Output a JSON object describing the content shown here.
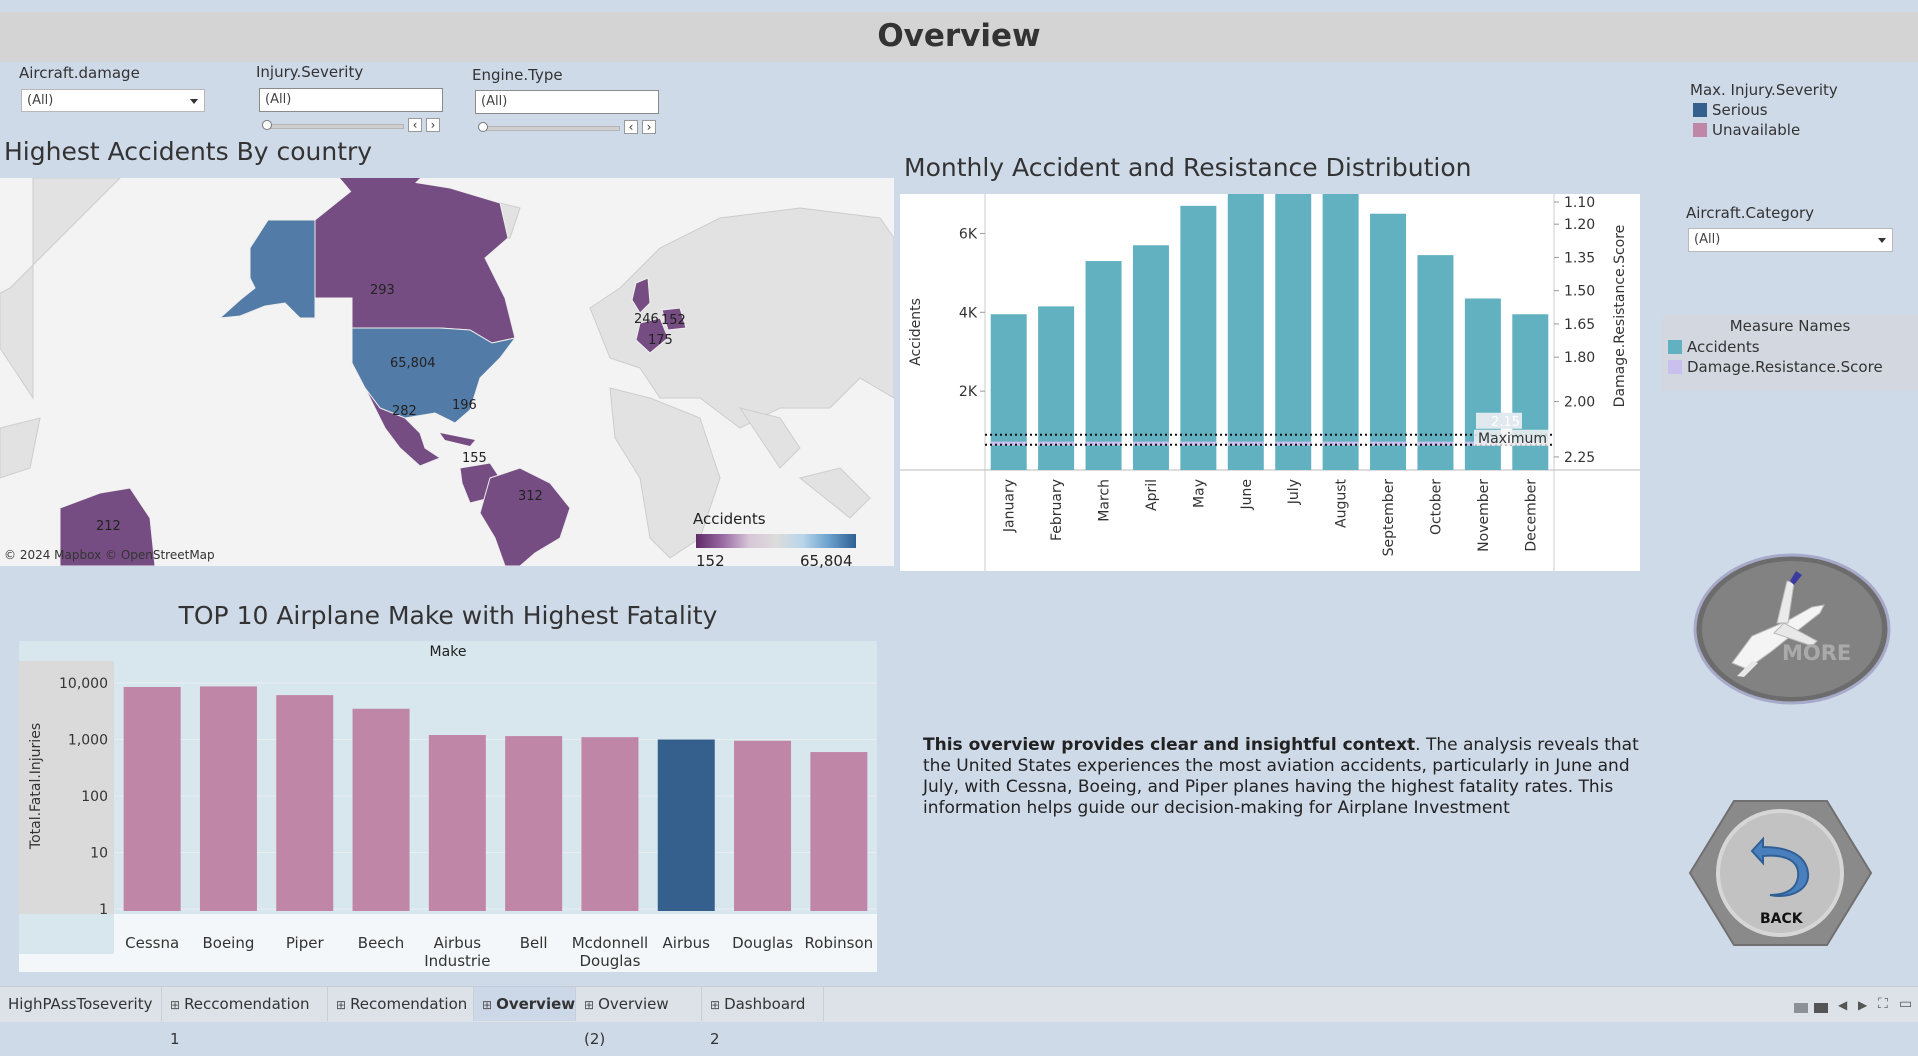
{
  "page": {
    "title": "Overview"
  },
  "filters": {
    "aircraft_damage": {
      "label": "Aircraft.damage",
      "value": "(All)"
    },
    "injury_severity": {
      "label": "Injury.Severity",
      "value": "(All)"
    },
    "engine_type": {
      "label": "Engine.Type",
      "value": "(All)"
    },
    "aircraft_category": {
      "label": "Aircraft.Category",
      "value": "(All)"
    }
  },
  "legends": {
    "max_injury": {
      "title": "Max. Injury.Severity",
      "items": [
        {
          "label": "Serious",
          "color": "#35608d"
        },
        {
          "label": "Unavailable",
          "color": "#c086a8"
        }
      ]
    },
    "measure_names": {
      "title": "Measure Names",
      "items": [
        {
          "label": "Accidents",
          "color": "#62b1c0"
        },
        {
          "label": "Damage.Resistance.Score",
          "color": "#c9c0f0"
        }
      ]
    }
  },
  "map": {
    "title": "Highest Accidents By country",
    "attribution": "© 2024 Mapbox © OpenStreetMap",
    "legend_title": "Accidents",
    "legend_min": "152",
    "legend_max": "65,804",
    "labels": [
      {
        "id": "canada",
        "text": "293",
        "value": 293
      },
      {
        "id": "usa",
        "text": "65,804",
        "value": 65804
      },
      {
        "id": "mexico",
        "text": "282",
        "value": 282
      },
      {
        "id": "bahamas",
        "text": "196",
        "value": 196
      },
      {
        "id": "colombia",
        "text": "155",
        "value": 155
      },
      {
        "id": "brazil",
        "text": "312",
        "value": 312
      },
      {
        "id": "australia",
        "text": "212",
        "value": 212
      },
      {
        "id": "uk",
        "text": "246",
        "value": 246
      },
      {
        "id": "germany",
        "text": "152",
        "value": 152
      },
      {
        "id": "france",
        "text": "175",
        "value": 175
      }
    ]
  },
  "monthly": {
    "title": "Monthly Accident and Resistance Distribution",
    "max_label": "Maximum",
    "max_value_label": "2.15"
  },
  "top10": {
    "title": "TOP 10 Airplane Make with Highest Fatality",
    "header": "Make"
  },
  "chart_data": [
    {
      "type": "bar",
      "title": "Monthly Accident and Resistance Distribution",
      "categories": [
        "January",
        "February",
        "March",
        "April",
        "May",
        "June",
        "July",
        "August",
        "September",
        "October",
        "November",
        "December"
      ],
      "series": [
        {
          "name": "Accidents",
          "axis": "left",
          "values": [
            3950,
            4150,
            5300,
            5700,
            6700,
            7000,
            7000,
            7000,
            6500,
            5450,
            4350,
            3950
          ]
        },
        {
          "name": "Damage.Resistance.Score",
          "axis": "right",
          "values": [
            2.19,
            2.19,
            2.19,
            2.19,
            2.19,
            2.19,
            2.19,
            2.19,
            2.19,
            2.19,
            2.19,
            2.19
          ]
        }
      ],
      "ylabel": "Accidents",
      "ylabel_right": "Damage.Resistance.Score",
      "ylim": [
        0,
        7000
      ],
      "ylim_right": [
        1.1,
        2.3
      ],
      "yticks": [
        {
          "v": 2000,
          "label": "2K"
        },
        {
          "v": 4000,
          "label": "4K"
        },
        {
          "v": 6000,
          "label": "6K"
        }
      ],
      "yticks_right": [
        {
          "v": 1.1,
          "label": "1.10"
        },
        {
          "v": 1.2,
          "label": "1.20"
        },
        {
          "v": 1.35,
          "label": "1.35"
        },
        {
          "v": 1.5,
          "label": "1.50"
        },
        {
          "v": 1.65,
          "label": "1.65"
        },
        {
          "v": 1.8,
          "label": "1.80"
        },
        {
          "v": 2.0,
          "label": "2.00"
        },
        {
          "v": 2.25,
          "label": "2.25"
        }
      ],
      "right_axis_reversed": true,
      "reference_line": {
        "label": "Maximum",
        "value": 2.15
      }
    },
    {
      "type": "bar",
      "title": "TOP 10 Airplane Make with Highest Fatality",
      "xlabel": "Make",
      "ylabel": "Total.Fatal.Injuries",
      "scale": "log",
      "ylim": [
        1,
        10000
      ],
      "yticks": [
        {
          "v": 1,
          "label": "1"
        },
        {
          "v": 10,
          "label": "10"
        },
        {
          "v": 100,
          "label": "100"
        },
        {
          "v": 1000,
          "label": "1,000"
        },
        {
          "v": 10000,
          "label": "10,000"
        }
      ],
      "categories": [
        "Cessna",
        "Boeing",
        "Piper",
        "Beech",
        "Airbus Industrie",
        "Bell",
        "Mcdonnell Douglas",
        "Airbus",
        "Douglas",
        "Robinson"
      ],
      "values": [
        8500,
        8700,
        6100,
        3500,
        1200,
        1150,
        1100,
        1000,
        950,
        600
      ],
      "severity": [
        "Unavailable",
        "Unavailable",
        "Unavailable",
        "Unavailable",
        "Unavailable",
        "Unavailable",
        "Unavailable",
        "Serious",
        "Unavailable",
        "Unavailable"
      ]
    }
  ],
  "overview_text": {
    "bold": "This overview provides clear and insightful context",
    "rest": ". The analysis reveals that the United States experiences the most aviation accidents, particularly in June and July, with Cessna, Boeing, and Piper planes having the highest fatality rates. This information helps guide our decision-making for Airplane Investment"
  },
  "buttons": {
    "more_label": "MORE",
    "back_label": "BACK"
  },
  "tabs": [
    {
      "label": "HighPAssToseverity",
      "icon": ""
    },
    {
      "label": "Reccomendation 1",
      "icon": "⊞"
    },
    {
      "label": "Recomendation",
      "icon": "⊞"
    },
    {
      "label": "Overview",
      "icon": "⊞",
      "active": true
    },
    {
      "label": "Overview (2)",
      "icon": "⊞"
    },
    {
      "label": "Dashboard 2",
      "icon": "⊞"
    }
  ]
}
